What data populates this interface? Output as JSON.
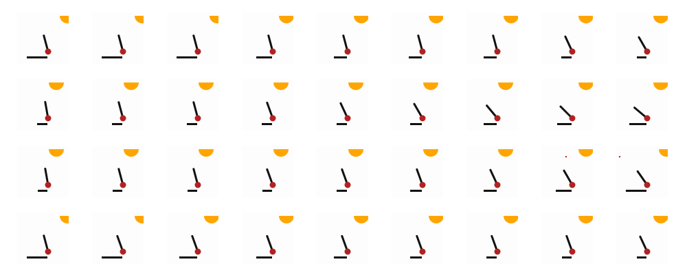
{
  "colors": {
    "background": "#ffffff",
    "frame_background": "#fdfdfd",
    "sun": "#ffa500",
    "rod": "#111111",
    "bob": "#b22222",
    "floor": "#111111",
    "stray_dot": "#cc2222"
  },
  "icons": {
    "sun": "half-circle-sun-icon",
    "rod": "pendulum-rod-icon",
    "bob": "pendulum-bob-icon",
    "floor": "floor-bar-icon"
  },
  "frames": [
    [
      {
        "rod_angle_deg": 15,
        "floor_fraction": 0.4,
        "sun": "corner"
      },
      {
        "rod_angle_deg": 15,
        "floor_fraction": 0.4,
        "sun": "corner"
      },
      {
        "rod_angle_deg": 15,
        "floor_fraction": 0.4,
        "sun": "corner"
      },
      {
        "rod_angle_deg": 15,
        "floor_fraction": 0.3,
        "sun": "mid"
      },
      {
        "rod_angle_deg": 15,
        "floor_fraction": 0.25,
        "sun": "mid"
      },
      {
        "rod_angle_deg": 15,
        "floor_fraction": 0.25,
        "sun": "mid"
      },
      {
        "rod_angle_deg": 15,
        "floor_fraction": 0.25,
        "sun": "mid"
      },
      {
        "rod_angle_deg": 25,
        "floor_fraction": 0.2,
        "sun": "mid"
      },
      {
        "rod_angle_deg": 30,
        "floor_fraction": 0.18,
        "sun": "mid"
      }
    ],
    [
      {
        "rod_angle_deg": 10,
        "floor_fraction": 0.2,
        "sun": "left"
      },
      {
        "rod_angle_deg": 15,
        "floor_fraction": 0.2,
        "sun": "left"
      },
      {
        "rod_angle_deg": 15,
        "floor_fraction": 0.2,
        "sun": "left"
      },
      {
        "rod_angle_deg": 20,
        "floor_fraction": 0.2,
        "sun": "left"
      },
      {
        "rod_angle_deg": 25,
        "floor_fraction": 0.2,
        "sun": "left"
      },
      {
        "rod_angle_deg": 30,
        "floor_fraction": 0.22,
        "sun": "left"
      },
      {
        "rod_angle_deg": 40,
        "floor_fraction": 0.25,
        "sun": "left"
      },
      {
        "rod_angle_deg": 45,
        "floor_fraction": 0.28,
        "sun": "mid"
      },
      {
        "rod_angle_deg": 50,
        "floor_fraction": 0.33,
        "sun": "mid"
      }
    ],
    [
      {
        "rod_angle_deg": 10,
        "floor_fraction": 0.18,
        "sun": "left"
      },
      {
        "rod_angle_deg": 15,
        "floor_fraction": 0.18,
        "sun": "left"
      },
      {
        "rod_angle_deg": 15,
        "floor_fraction": 0.18,
        "sun": "left"
      },
      {
        "rod_angle_deg": 20,
        "floor_fraction": 0.18,
        "sun": "left"
      },
      {
        "rod_angle_deg": 20,
        "floor_fraction": 0.2,
        "sun": "left"
      },
      {
        "rod_angle_deg": 20,
        "floor_fraction": 0.22,
        "sun": "left"
      },
      {
        "rod_angle_deg": 25,
        "floor_fraction": 0.25,
        "sun": "left"
      },
      {
        "rod_angle_deg": 30,
        "floor_fraction": 0.3,
        "sun": "mid",
        "stray_dot": true
      },
      {
        "rod_angle_deg": 35,
        "floor_fraction": 0.4,
        "sun": "corner",
        "stray_dot": true
      }
    ],
    [
      {
        "rod_angle_deg": 15,
        "floor_fraction": 0.4,
        "sun": "corner"
      },
      {
        "rod_angle_deg": 20,
        "floor_fraction": 0.4,
        "sun": "corner"
      },
      {
        "rod_angle_deg": 20,
        "floor_fraction": 0.35,
        "sun": "mid"
      },
      {
        "rod_angle_deg": 20,
        "floor_fraction": 0.3,
        "sun": "mid"
      },
      {
        "rod_angle_deg": 20,
        "floor_fraction": 0.25,
        "sun": "mid"
      },
      {
        "rod_angle_deg": 20,
        "floor_fraction": 0.22,
        "sun": "mid"
      },
      {
        "rod_angle_deg": 20,
        "floor_fraction": 0.2,
        "sun": "mid"
      },
      {
        "rod_angle_deg": 20,
        "floor_fraction": 0.18,
        "sun": "mid"
      },
      {
        "rod_angle_deg": 25,
        "floor_fraction": 0.18,
        "sun": "mid"
      }
    ]
  ]
}
